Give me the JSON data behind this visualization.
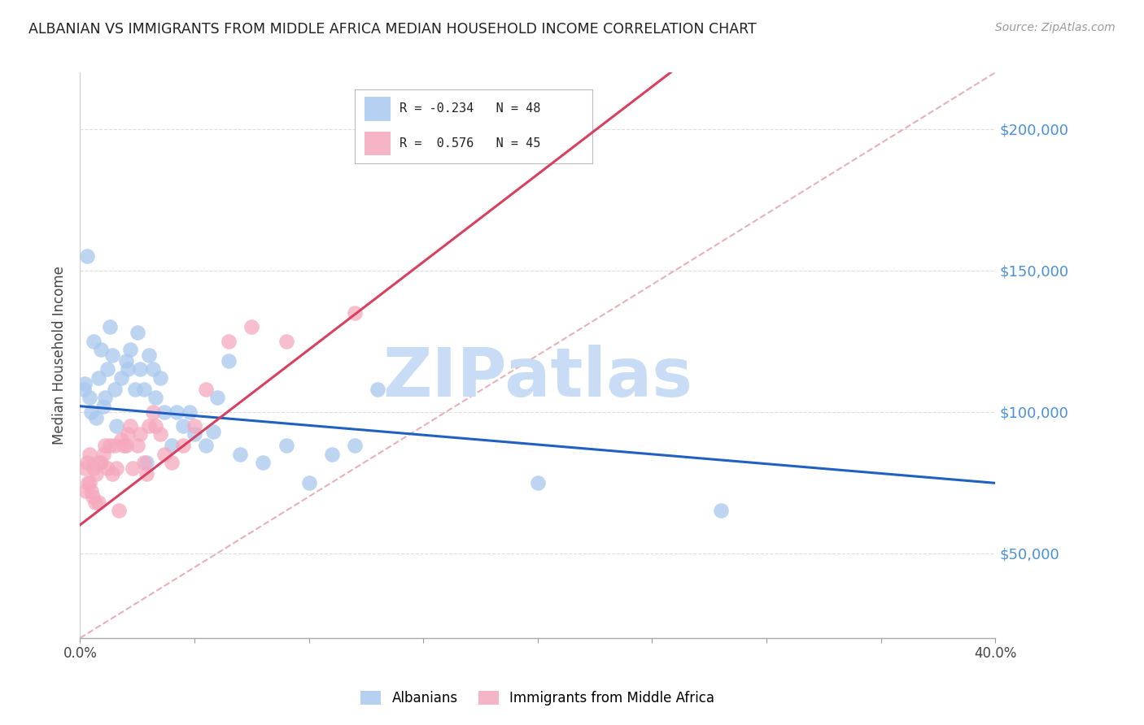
{
  "title": "ALBANIAN VS IMMIGRANTS FROM MIDDLE AFRICA MEDIAN HOUSEHOLD INCOME CORRELATION CHART",
  "source": "Source: ZipAtlas.com",
  "xlabel_vals": [
    0,
    5,
    10,
    15,
    20,
    25,
    30,
    35,
    40
  ],
  "xlabel_ticks_show": [
    "0.0%",
    "",
    "",
    "",
    "",
    "",
    "",
    "",
    "40.0%"
  ],
  "ylabel_ticks": [
    50000,
    100000,
    150000,
    200000
  ],
  "ylabel_labels": [
    "$50,000",
    "$100,000",
    "$150,000",
    "$200,000"
  ],
  "xlim": [
    0,
    40
  ],
  "ylim": [
    20000,
    220000
  ],
  "blue_scatter_color": "#A8C8EE",
  "pink_scatter_color": "#F5A8BE",
  "blue_line_color": "#2060C0",
  "pink_line_color": "#D84060",
  "ref_line_color": "#E8B0B8",
  "watermark_text": "ZIPatlas",
  "watermark_color": "#C8DCF5",
  "ylabel_color": "#4A90D9",
  "legend_label1": "Albanians",
  "legend_label2": "Immigrants from Middle Africa",
  "legend_blue_R": "-0.234",
  "legend_blue_N": "48",
  "legend_pink_R": "0.576",
  "legend_pink_N": "45",
  "blue_intercept": 102000,
  "blue_slope": -680,
  "pink_intercept": 60000,
  "pink_slope": 6200,
  "blue_scatter_x": [
    0.2,
    0.4,
    0.5,
    0.7,
    0.8,
    1.0,
    1.1,
    1.2,
    1.5,
    1.6,
    1.8,
    2.0,
    2.2,
    2.4,
    2.5,
    2.6,
    2.8,
    3.0,
    3.2,
    3.5,
    3.7,
    4.0,
    4.2,
    4.5,
    5.0,
    5.5,
    6.0,
    6.5,
    7.0,
    8.0,
    9.0,
    10.0,
    11.0,
    12.0,
    13.0,
    0.3,
    0.6,
    0.9,
    1.3,
    2.1,
    3.3,
    4.8,
    20.0,
    28.0,
    0.15,
    1.4,
    2.9,
    5.8
  ],
  "blue_scatter_y": [
    110000,
    105000,
    100000,
    98000,
    112000,
    102000,
    105000,
    115000,
    108000,
    95000,
    112000,
    118000,
    122000,
    108000,
    128000,
    115000,
    108000,
    120000,
    115000,
    112000,
    100000,
    88000,
    100000,
    95000,
    92000,
    88000,
    105000,
    118000,
    85000,
    82000,
    88000,
    75000,
    85000,
    88000,
    108000,
    155000,
    125000,
    122000,
    130000,
    115000,
    105000,
    100000,
    75000,
    65000,
    108000,
    120000,
    82000,
    93000
  ],
  "pink_scatter_x": [
    0.2,
    0.3,
    0.4,
    0.5,
    0.6,
    0.7,
    0.8,
    0.9,
    1.0,
    1.1,
    1.2,
    1.4,
    1.5,
    1.6,
    1.8,
    2.0,
    2.2,
    2.3,
    2.5,
    2.6,
    2.8,
    3.0,
    3.2,
    3.5,
    3.7,
    4.0,
    4.5,
    5.0,
    5.5,
    6.5,
    7.5,
    9.0,
    12.0,
    0.4,
    0.8,
    1.3,
    2.1,
    3.3,
    1.9,
    2.9,
    0.25,
    0.35,
    0.55,
    0.65,
    1.7
  ],
  "pink_scatter_y": [
    80000,
    82000,
    75000,
    72000,
    80000,
    78000,
    68000,
    82000,
    85000,
    88000,
    80000,
    78000,
    88000,
    80000,
    90000,
    88000,
    95000,
    80000,
    88000,
    92000,
    82000,
    95000,
    100000,
    92000,
    85000,
    82000,
    88000,
    95000,
    108000,
    125000,
    130000,
    125000,
    135000,
    85000,
    82000,
    88000,
    92000,
    95000,
    88000,
    78000,
    72000,
    75000,
    70000,
    68000,
    65000
  ]
}
